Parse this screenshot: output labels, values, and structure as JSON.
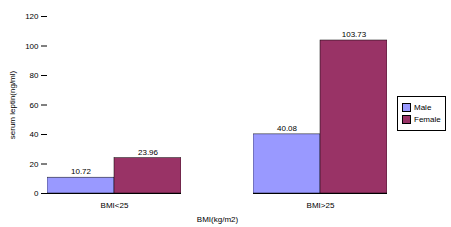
{
  "chart_data": {
    "type": "bar",
    "x_label": "BMI(kg/m2)",
    "y_label": "serum leptin(ng/ml)",
    "categories": [
      "BMI<25",
      "BMI>25"
    ],
    "series": [
      {
        "name": "Male",
        "color": "#9999ff",
        "values": [
          10.72,
          40.08
        ]
      },
      {
        "name": "Female",
        "color": "#993366",
        "values": [
          23.96,
          103.73
        ]
      }
    ],
    "ylim": [
      0,
      120
    ],
    "yticks": [
      0,
      20,
      40,
      60,
      80,
      100,
      120
    ],
    "grid": false,
    "legend": "right",
    "data_labels": true
  }
}
